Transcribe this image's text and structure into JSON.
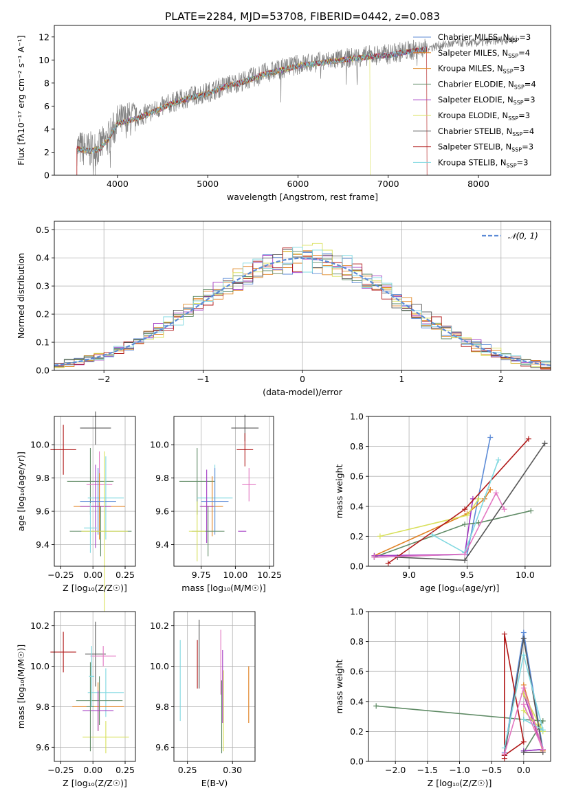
{
  "figure_title": "PLATE=2284, MJD=53708, FIBERID=0442, z=0.083",
  "colors": {
    "Chabrier MILES": "#5b8ad6",
    "Salpeter MILES": "#e07f1e",
    "Kroupa MILES": "#e08a28",
    "Chabrier ELODIE": "#5e8a64",
    "Salpeter ELODIE": "#a238c2",
    "Kroupa ELODIE": "#d8e05a",
    "Chabrier STELIB": "#555555",
    "Salpeter STELIB": "#b01818",
    "Kroupa STELIB": "#7fd8e0",
    "data": "#808080",
    "pink": "#e377c2"
  },
  "chart_data": [
    {
      "panel": "spectrum",
      "type": "line",
      "xlabel": "wavelength [Angstrom, rest frame]",
      "ylabel": "Flux [fλ10⁻¹⁷ erg cm⁻² s⁻¹ A⁻¹]",
      "xlim": [
        3300,
        8800
      ],
      "ylim": [
        0,
        13
      ],
      "xticks": [
        4000,
        5000,
        6000,
        7000,
        8000
      ],
      "yticks": [
        0,
        2,
        4,
        6,
        8,
        10,
        12
      ],
      "legend_location": "top-right",
      "series": [
        {
          "name": "Chabrier MILES, N_SSP=3",
          "label_main": "Chabrier MILES, N",
          "label_sub": "SSP",
          "label_tail": "=3",
          "color": "#5b8ad6"
        },
        {
          "name": "Salpeter MILES, N_SSP=4",
          "label_main": "Salpeter MILES, N",
          "label_sub": "SSP",
          "label_tail": "=4",
          "color": "#e07f1e"
        },
        {
          "name": "Kroupa MILES, N_SSP=3",
          "label_main": "Kroupa MILES, N",
          "label_sub": "SSP",
          "label_tail": "=3",
          "color": "#e08a28"
        },
        {
          "name": "Chabrier ELODIE, N_SSP=4",
          "label_main": "Chabrier ELODIE, N",
          "label_sub": "SSP",
          "label_tail": "=4",
          "color": "#5e8a64"
        },
        {
          "name": "Salpeter ELODIE, N_SSP=3",
          "label_main": "Salpeter ELODIE, N",
          "label_sub": "SSP",
          "label_tail": "=3",
          "color": "#a238c2"
        },
        {
          "name": "Kroupa ELODIE, N_SSP=3",
          "label_main": "Kroupa ELODIE, N",
          "label_sub": "SSP",
          "label_tail": "=3",
          "color": "#d8e05a"
        },
        {
          "name": "Chabrier STELIB, N_SSP=4",
          "label_main": "Chabrier STELIB, N",
          "label_sub": "SSP",
          "label_tail": "=4",
          "color": "#555555"
        },
        {
          "name": "Salpeter STELIB, N_SSP=3",
          "label_main": "Salpeter STELIB, N",
          "label_sub": "SSP",
          "label_tail": "=3",
          "color": "#b01818"
        },
        {
          "name": "Kroupa STELIB, N_SSP=3",
          "label_main": "Kroupa STELIB, N",
          "label_sub": "SSP",
          "label_tail": "=3",
          "color": "#7fd8e0"
        }
      ],
      "continuum": {
        "x": [
          3550,
          3700,
          3800,
          3900,
          4000,
          4100,
          4200,
          4400,
          4600,
          4800,
          5000,
          5200,
          5400,
          5600,
          5800,
          6000,
          6200,
          6400,
          6600,
          6800,
          7000,
          7200,
          7400,
          7600,
          7800,
          8000,
          8200,
          8400
        ],
        "y": [
          2.4,
          2.2,
          2.4,
          3.2,
          4.6,
          4.8,
          5.0,
          5.6,
          6.3,
          6.8,
          7.2,
          7.8,
          8.2,
          8.8,
          9.2,
          9.6,
          9.8,
          10.0,
          10.2,
          10.4,
          10.5,
          10.8,
          11.0,
          11.3,
          11.5,
          11.5,
          11.7,
          11.8
        ]
      }
    },
    {
      "panel": "residuals",
      "type": "step",
      "xlabel": "(data-model)/error",
      "ylabel": "Normed distribution",
      "xlim": [
        -2.5,
        2.5
      ],
      "ylim": [
        0,
        0.53
      ],
      "xticks": [
        -2,
        -1,
        0,
        1,
        2
      ],
      "yticks": [
        0.0,
        0.1,
        0.2,
        0.3,
        0.4,
        0.5
      ],
      "reference_label": "𝒩(0, 1)",
      "reference_color": "#5b8ad6",
      "legend_location": "top-right"
    },
    {
      "panel": "age_vs_Z",
      "type": "errorbar",
      "xlabel": "Z [log₁₀(Z/Z☉)]",
      "ylabel": "age  [log₁₀(age/yr)]",
      "xlim": [
        -0.3,
        0.33
      ],
      "ylim": [
        9.27,
        10.17
      ],
      "xticks": [
        -0.25,
        0.0,
        0.25
      ],
      "yticks": [
        9.4,
        9.6,
        9.8,
        10.0
      ],
      "points": [
        {
          "x": -0.23,
          "y": 9.97,
          "xerr": 0.1,
          "yerr": 0.15,
          "color": "#b01818"
        },
        {
          "x": 0.02,
          "y": 10.1,
          "xerr": 0.12,
          "yerr": 0.1,
          "color": "#555555"
        },
        {
          "x": -0.02,
          "y": 9.78,
          "xerr": 0.18,
          "yerr": 0.2,
          "color": "#5e8a64"
        },
        {
          "x": 0.05,
          "y": 9.76,
          "xerr": 0.1,
          "yerr": 0.2,
          "color": "#e377c2"
        },
        {
          "x": 0.1,
          "y": 9.68,
          "xerr": 0.14,
          "yerr": 0.25,
          "color": "#7fd8e0"
        },
        {
          "x": 0.05,
          "y": 9.63,
          "xerr": 0.2,
          "yerr": 0.2,
          "color": "#e07f1e"
        },
        {
          "x": 0.04,
          "y": 9.66,
          "xerr": 0.14,
          "yerr": 0.2,
          "color": "#5b8ad6"
        },
        {
          "x": 0.02,
          "y": 9.63,
          "xerr": 0.12,
          "yerr": 0.25,
          "color": "#a238c2"
        },
        {
          "x": 0.06,
          "y": 9.48,
          "xerr": 0.24,
          "yerr": 0.15,
          "color": "#5e8a64"
        },
        {
          "x": 0.09,
          "y": 9.48,
          "xerr": 0.18,
          "yerr": 0.48,
          "color": "#d8e05a"
        },
        {
          "x": -0.02,
          "y": 9.5,
          "xerr": 0.05,
          "yerr": 0.15,
          "color": "#7fd8e0"
        }
      ]
    },
    {
      "panel": "age_vs_mass",
      "type": "errorbar",
      "xlabel": "mass [log₁₀(M/M☉)]",
      "ylabel": "",
      "xlim": [
        9.55,
        10.28
      ],
      "ylim": [
        9.27,
        10.17
      ],
      "xticks": [
        9.75,
        10.0,
        10.25
      ],
      "yticks": [
        9.4,
        9.6,
        9.8,
        10.0
      ],
      "points": [
        {
          "x": 10.07,
          "y": 10.1,
          "xerr": 0.1,
          "yerr": 0.08,
          "color": "#555555"
        },
        {
          "x": 10.07,
          "y": 9.97,
          "xerr": 0.06,
          "yerr": 0.1,
          "color": "#b01818"
        },
        {
          "x": 9.72,
          "y": 9.78,
          "xerr": 0.13,
          "yerr": 0.2,
          "color": "#5e8a64"
        },
        {
          "x": 10.1,
          "y": 9.76,
          "xerr": 0.05,
          "yerr": 0.1,
          "color": "#e377c2"
        },
        {
          "x": 9.85,
          "y": 9.68,
          "xerr": 0.13,
          "yerr": 0.2,
          "color": "#7fd8e0"
        },
        {
          "x": 9.83,
          "y": 9.63,
          "xerr": 0.08,
          "yerr": 0.18,
          "color": "#e07f1e"
        },
        {
          "x": 9.85,
          "y": 9.66,
          "xerr": 0.1,
          "yerr": 0.2,
          "color": "#5b8ad6"
        },
        {
          "x": 9.79,
          "y": 9.63,
          "xerr": 0.05,
          "yerr": 0.22,
          "color": "#a238c2"
        },
        {
          "x": 9.8,
          "y": 9.48,
          "xerr": 0.12,
          "yerr": 0.15,
          "color": "#5e8a64"
        },
        {
          "x": 9.72,
          "y": 9.48,
          "xerr": 0.06,
          "yerr": 0.18,
          "color": "#d8e05a"
        },
        {
          "x": 10.05,
          "y": 9.48,
          "xerr": 0.03,
          "yerr": 0.0,
          "color": "#a238c2"
        }
      ]
    },
    {
      "panel": "massweight_vs_age",
      "type": "line",
      "xlabel": "age  [log₁₀(age/yr)]",
      "ylabel": "mass weight",
      "xlim": [
        8.65,
        10.22
      ],
      "ylim": [
        0,
        1.0
      ],
      "xticks": [
        9.0,
        9.5,
        10.0
      ],
      "yticks": [
        0.0,
        0.2,
        0.4,
        0.6,
        0.8,
        1.0
      ],
      "series": [
        {
          "color": "#5b8ad6",
          "x": [
            8.7,
            9.5,
            9.7
          ],
          "y": [
            0.06,
            0.08,
            0.86
          ]
        },
        {
          "color": "#e07f1e",
          "x": [
            8.7,
            9.5,
            9.65,
            9.7
          ],
          "y": [
            0.07,
            0.35,
            0.45,
            0.51
          ]
        },
        {
          "color": "#5e8a64",
          "x": [
            8.7,
            9.48,
            9.6,
            10.05
          ],
          "y": [
            0.06,
            0.28,
            0.29,
            0.37
          ]
        },
        {
          "color": "#a238c2",
          "x": [
            8.7,
            9.48,
            9.55
          ],
          "y": [
            0.07,
            0.08,
            0.45
          ]
        },
        {
          "color": "#d8e05a",
          "x": [
            8.75,
            9.5,
            9.6
          ],
          "y": [
            0.2,
            0.34,
            0.45
          ]
        },
        {
          "color": "#555555",
          "x": [
            8.9,
            9.48,
            10.17
          ],
          "y": [
            0.06,
            0.04,
            0.82
          ]
        },
        {
          "color": "#b01818",
          "x": [
            8.82,
            9.48,
            10.03
          ],
          "y": [
            0.02,
            0.38,
            0.85
          ]
        },
        {
          "color": "#7fd8e0",
          "x": [
            9.2,
            9.48,
            9.77
          ],
          "y": [
            0.21,
            0.09,
            0.71
          ]
        },
        {
          "color": "#e377c2",
          "x": [
            8.7,
            9.48,
            9.75,
            9.82
          ],
          "y": [
            0.06,
            0.08,
            0.49,
            0.38
          ]
        }
      ]
    },
    {
      "panel": "mass_vs_Z",
      "type": "errorbar",
      "xlabel": "Z [log₁₀(Z/Z☉)]",
      "ylabel": "mass [log₁₀(M/M☉)]",
      "xlim": [
        -0.3,
        0.33
      ],
      "ylim": [
        9.53,
        10.27
      ],
      "xticks": [
        -0.25,
        0.0,
        0.25
      ],
      "yticks": [
        9.6,
        9.8,
        10.0,
        10.2
      ],
      "points": [
        {
          "x": -0.23,
          "y": 10.07,
          "xerr": 0.1,
          "yerr": 0.1,
          "color": "#b01818"
        },
        {
          "x": 0.02,
          "y": 10.06,
          "xerr": 0.08,
          "yerr": 0.16,
          "color": "#555555"
        },
        {
          "x": 0.08,
          "y": 10.05,
          "xerr": 0.1,
          "yerr": 0.05,
          "color": "#e377c2"
        },
        {
          "x": 0.1,
          "y": 9.87,
          "xerr": 0.14,
          "yerr": 0.12,
          "color": "#7fd8e0"
        },
        {
          "x": 0.04,
          "y": 9.8,
          "xerr": 0.2,
          "yerr": 0.12,
          "color": "#e07f1e"
        },
        {
          "x": 0.05,
          "y": 9.83,
          "xerr": 0.18,
          "yerr": 0.12,
          "color": "#5e8a64"
        },
        {
          "x": 0.04,
          "y": 9.78,
          "xerr": 0.12,
          "yerr": 0.1,
          "color": "#a238c2"
        },
        {
          "x": 0.1,
          "y": 9.65,
          "xerr": 0.18,
          "yerr": 0.08,
          "color": "#d8e05a"
        },
        {
          "x": -0.02,
          "y": 9.8,
          "xerr": 0.03,
          "yerr": 0.22,
          "color": "#5e8a64"
        },
        {
          "x": -0.01,
          "y": 9.95,
          "xerr": 0.02,
          "yerr": 0.15,
          "color": "#7fd8e0"
        }
      ]
    },
    {
      "panel": "mass_vs_ebv",
      "type": "errorbar",
      "xlabel": "E(B-V)",
      "ylabel": "",
      "xlim": [
        0.235,
        0.325
      ],
      "ylim": [
        9.53,
        10.27
      ],
      "xticks": [
        0.25,
        0.3
      ],
      "yticks": [
        9.6,
        9.8,
        10.0,
        10.2
      ],
      "points": [
        {
          "x": 0.242,
          "y": 9.93,
          "yerr": 0.2,
          "color": "#7fd8e0"
        },
        {
          "x": 0.261,
          "y": 10.01,
          "yerr": 0.12,
          "color": "#b01818"
        },
        {
          "x": 0.263,
          "y": 10.06,
          "yerr": 0.17,
          "color": "#555555"
        },
        {
          "x": 0.287,
          "y": 10.02,
          "yerr": 0.16,
          "color": "#e377c2"
        },
        {
          "x": 0.288,
          "y": 9.75,
          "yerr": 0.18,
          "color": "#5e8a64"
        },
        {
          "x": 0.289,
          "y": 9.9,
          "yerr": 0.18,
          "color": "#a238c2"
        },
        {
          "x": 0.29,
          "y": 9.78,
          "yerr": 0.2,
          "color": "#d8e05a"
        },
        {
          "x": 0.318,
          "y": 9.86,
          "yerr": 0.14,
          "color": "#e07f1e"
        }
      ]
    },
    {
      "panel": "massweight_vs_Z",
      "type": "line",
      "xlabel": "Z [log₁₀(Z/Z☉)]",
      "ylabel": "mass weight",
      "xlim": [
        -2.42,
        0.42
      ],
      "ylim": [
        0,
        1.0
      ],
      "xticks": [
        -2.0,
        -1.5,
        -1.0,
        -0.5,
        0.0
      ],
      "yticks": [
        0.0,
        0.2,
        0.4,
        0.6,
        0.8,
        1.0
      ],
      "series": [
        {
          "color": "#5e8a64",
          "x": [
            -2.3,
            0.0,
            0.3,
            0.0
          ],
          "y": [
            0.37,
            0.28,
            0.27,
            0.06
          ]
        },
        {
          "color": "#5b8ad6",
          "x": [
            -0.3,
            0.0,
            0.3,
            0.0
          ],
          "y": [
            0.06,
            0.86,
            0.08,
            0.07
          ]
        },
        {
          "color": "#e07f1e",
          "x": [
            0.0,
            0.3,
            0.0
          ],
          "y": [
            0.51,
            0.07,
            0.45
          ]
        },
        {
          "color": "#a238c2",
          "x": [
            0.0,
            0.3,
            0.0
          ],
          "y": [
            0.45,
            0.08,
            0.07
          ]
        },
        {
          "color": "#d8e05a",
          "x": [
            0.0,
            0.3,
            0.0
          ],
          "y": [
            0.45,
            0.2,
            0.34
          ]
        },
        {
          "color": "#555555",
          "x": [
            -0.3,
            0.0,
            0.3,
            0.0
          ],
          "y": [
            0.04,
            0.82,
            0.06,
            0.06
          ]
        },
        {
          "color": "#b01818",
          "x": [
            -0.3,
            -0.3,
            0.0,
            -0.3
          ],
          "y": [
            0.02,
            0.85,
            0.13,
            0.04
          ]
        },
        {
          "color": "#7fd8e0",
          "x": [
            -0.3,
            0.0,
            0.3,
            0.0
          ],
          "y": [
            0.09,
            0.71,
            0.21,
            0.28
          ]
        },
        {
          "color": "#e377c2",
          "x": [
            -0.3,
            0.0,
            0.3,
            0.0
          ],
          "y": [
            0.05,
            0.49,
            0.08,
            0.38
          ]
        }
      ]
    }
  ]
}
